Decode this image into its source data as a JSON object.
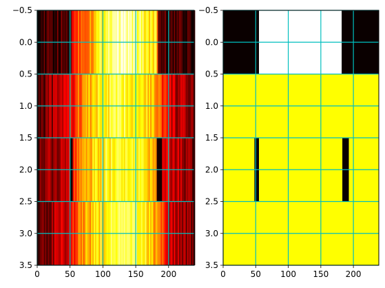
{
  "chart_data": [
    {
      "type": "heatmap",
      "title": "",
      "xlabel": "",
      "ylabel": "",
      "colormap": "hot",
      "xlim": [
        0,
        239
      ],
      "ylim": [
        3.5,
        -0.5
      ],
      "x_ticks": [
        0,
        50,
        100,
        150,
        200
      ],
      "y_ticks": [
        -0.5,
        0.0,
        0.5,
        1.0,
        1.5,
        2.0,
        2.5,
        3.0,
        3.5
      ],
      "x_tick_labels": [
        "0",
        "50",
        "100",
        "150",
        "200"
      ],
      "y_tick_labels": [
        "−0.5",
        "0.0",
        "0.5",
        "1.0",
        "1.5",
        "2.0",
        "2.5",
        "3.0",
        "3.5"
      ],
      "grid": true,
      "grid_color": "#00bfbf",
      "rows": [
        {
          "row": 0,
          "description": "intensity profile peaking near x=110-150",
          "profile": [
            [
              0,
              0.05
            ],
            [
              50,
              0.1
            ],
            [
              55,
              0.45
            ],
            [
              80,
              0.6
            ],
            [
              100,
              0.8
            ],
            [
              120,
              0.95
            ],
            [
              140,
              0.9
            ],
            [
              160,
              0.8
            ],
            [
              180,
              0.7
            ],
            [
              185,
              0.08
            ],
            [
              239,
              0.05
            ]
          ]
        },
        {
          "row": 1,
          "profile": [
            [
              0,
              0.1
            ],
            [
              20,
              0.2
            ],
            [
              50,
              0.35
            ],
            [
              70,
              0.6
            ],
            [
              100,
              0.75
            ],
            [
              130,
              0.8
            ],
            [
              160,
              0.75
            ],
            [
              180,
              0.6
            ],
            [
              200,
              0.3
            ],
            [
              239,
              0.15
            ]
          ]
        },
        {
          "row": 2,
          "profile": [
            [
              0,
              0.1
            ],
            [
              20,
              0.2
            ],
            [
              50,
              0.35
            ],
            [
              70,
              0.6
            ],
            [
              100,
              0.75
            ],
            [
              130,
              0.8
            ],
            [
              160,
              0.75
            ],
            [
              180,
              0.6
            ],
            [
              200,
              0.3
            ],
            [
              239,
              0.15
            ]
          ],
          "dark_bands": [
            [
              50,
              53
            ],
            [
              182,
              190
            ]
          ]
        },
        {
          "row": 3,
          "profile": [
            [
              0,
              0.1
            ],
            [
              20,
              0.2
            ],
            [
              50,
              0.35
            ],
            [
              70,
              0.6
            ],
            [
              100,
              0.75
            ],
            [
              130,
              0.8
            ],
            [
              160,
              0.75
            ],
            [
              180,
              0.6
            ],
            [
              200,
              0.3
            ],
            [
              239,
              0.15
            ]
          ]
        }
      ]
    },
    {
      "type": "heatmap",
      "title": "",
      "xlabel": "",
      "ylabel": "",
      "colormap": "hot",
      "xlim": [
        0,
        239
      ],
      "ylim": [
        3.5,
        -0.5
      ],
      "x_ticks": [
        0,
        50,
        100,
        150,
        200
      ],
      "y_ticks": [
        -0.5,
        0.0,
        0.5,
        1.0,
        1.5,
        2.0,
        2.5,
        3.0,
        3.5
      ],
      "x_tick_labels": [
        "0",
        "50",
        "100",
        "150",
        "200"
      ],
      "y_tick_labels": [
        "−0.5",
        "0.0",
        "0.5",
        "1.0",
        "1.5",
        "2.0",
        "2.5",
        "3.0",
        "3.5"
      ],
      "grid": true,
      "grid_color": "#00bfbf",
      "segments": [
        {
          "row": 0,
          "x0": 0,
          "x1": 55,
          "level": "black"
        },
        {
          "row": 0,
          "x0": 55,
          "x1": 182,
          "level": "white"
        },
        {
          "row": 0,
          "x0": 182,
          "x1": 239,
          "level": "black"
        },
        {
          "row": 1,
          "x0": 0,
          "x1": 239,
          "level": "yellow"
        },
        {
          "row": 2,
          "x0": 0,
          "x1": 48,
          "level": "yellow"
        },
        {
          "row": 2,
          "x0": 48,
          "x1": 55,
          "level": "black"
        },
        {
          "row": 2,
          "x0": 55,
          "x1": 183,
          "level": "yellow"
        },
        {
          "row": 2,
          "x0": 183,
          "x1": 193,
          "level": "black"
        },
        {
          "row": 2,
          "x0": 193,
          "x1": 239,
          "level": "yellow"
        },
        {
          "row": 3,
          "x0": 0,
          "x1": 239,
          "level": "yellow"
        }
      ],
      "level_colors": {
        "black": "#0a0000",
        "white": "#ffffff",
        "yellow": "#ffff00"
      }
    }
  ]
}
